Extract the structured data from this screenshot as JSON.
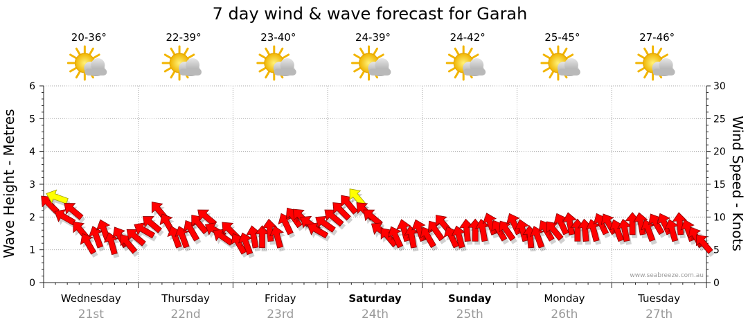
{
  "chart_data": {
    "type": "line",
    "title": "7 day wind & wave forecast for Garah",
    "ylabel_left": "Wave Height - Metres",
    "ylabel_right": "Wind Speed - Knots",
    "ylim_left": [
      0,
      6
    ],
    "ylim_right": [
      0,
      30
    ],
    "yticks_left": [
      "0",
      "1",
      "2",
      "3",
      "4",
      "5",
      "6"
    ],
    "yticks_right": [
      "0",
      "5",
      "10",
      "15",
      "20",
      "25",
      "30"
    ],
    "watermark": "www.seabreeze.com.au",
    "days": [
      {
        "name": "Wednesday",
        "date": "21st",
        "temp": "20-36°",
        "bold": false
      },
      {
        "name": "Thursday",
        "date": "22nd",
        "temp": "22-39°",
        "bold": false
      },
      {
        "name": "Friday",
        "date": "23rd",
        "temp": "23-40°",
        "bold": false
      },
      {
        "name": "Saturday",
        "date": "24th",
        "temp": "24-39°",
        "bold": true
      },
      {
        "name": "Sunday",
        "date": "25th",
        "temp": "24-42°",
        "bold": true
      },
      {
        "name": "Monday",
        "date": "26th",
        "temp": "25-45°",
        "bold": false
      },
      {
        "name": "Tuesday",
        "date": "27th",
        "temp": "27-46°",
        "bold": false
      }
    ],
    "weather_icon": "partly-cloudy-sun-icon",
    "wind_series": {
      "name": "wind",
      "x_day_offsets": [
        0.0,
        0.08,
        0.16,
        0.25,
        0.33,
        0.41,
        0.5,
        0.58,
        0.66,
        0.75,
        0.83,
        0.91,
        1.0,
        1.08,
        1.16,
        1.25,
        1.33,
        1.41,
        1.5,
        1.58,
        1.66,
        1.75,
        1.83,
        1.91,
        2.0,
        2.08,
        2.16,
        2.25,
        2.33,
        2.41,
        2.5,
        2.58,
        2.66,
        2.75,
        2.83,
        2.91,
        3.0,
        3.08,
        3.16,
        3.25,
        3.33,
        3.41,
        3.5,
        3.58,
        3.66,
        3.75,
        3.83,
        3.91,
        4.0,
        4.08,
        4.16,
        4.25,
        4.33,
        4.41,
        4.5,
        4.58,
        4.66,
        4.75,
        4.83,
        4.91,
        5.0,
        5.08,
        5.16,
        5.25,
        5.33,
        5.41,
        5.5,
        5.58,
        5.66,
        5.75,
        5.83,
        5.91,
        6.0,
        6.08,
        6.16,
        6.25,
        6.33,
        6.41,
        6.5,
        6.58,
        6.66,
        6.75,
        6.83,
        6.91
      ],
      "knots": [
        12,
        13,
        10,
        11,
        8,
        6,
        7,
        8,
        6,
        7,
        6,
        7,
        8,
        9,
        11,
        9,
        7,
        7,
        8,
        9,
        10,
        8,
        7,
        8,
        6,
        6,
        7,
        7,
        8,
        7,
        9,
        10,
        10,
        9,
        8,
        9,
        10,
        11,
        12,
        13,
        11,
        10,
        8,
        7,
        7,
        8,
        7,
        8,
        7,
        8,
        9,
        7,
        7,
        8,
        8,
        8,
        9,
        8,
        8,
        9,
        8,
        7,
        7,
        8,
        8,
        9,
        9,
        8,
        8,
        8,
        9,
        9,
        8,
        8,
        9,
        9,
        8,
        9,
        9,
        8,
        9,
        8,
        7,
        6
      ],
      "direction_deg": [
        225,
        200,
        210,
        220,
        230,
        240,
        250,
        250,
        255,
        240,
        230,
        220,
        210,
        220,
        230,
        240,
        250,
        250,
        240,
        230,
        220,
        210,
        215,
        225,
        240,
        250,
        260,
        270,
        265,
        255,
        245,
        235,
        225,
        215,
        210,
        215,
        220,
        225,
        230,
        230,
        225,
        220,
        215,
        230,
        245,
        255,
        260,
        250,
        240,
        235,
        230,
        245,
        255,
        265,
        270,
        260,
        250,
        240,
        235,
        245,
        255,
        265,
        250,
        240,
        230,
        245,
        260,
        270,
        265,
        255,
        245,
        240,
        250,
        260,
        270,
        260,
        250,
        240,
        245,
        255,
        265,
        250,
        240,
        230
      ]
    }
  }
}
